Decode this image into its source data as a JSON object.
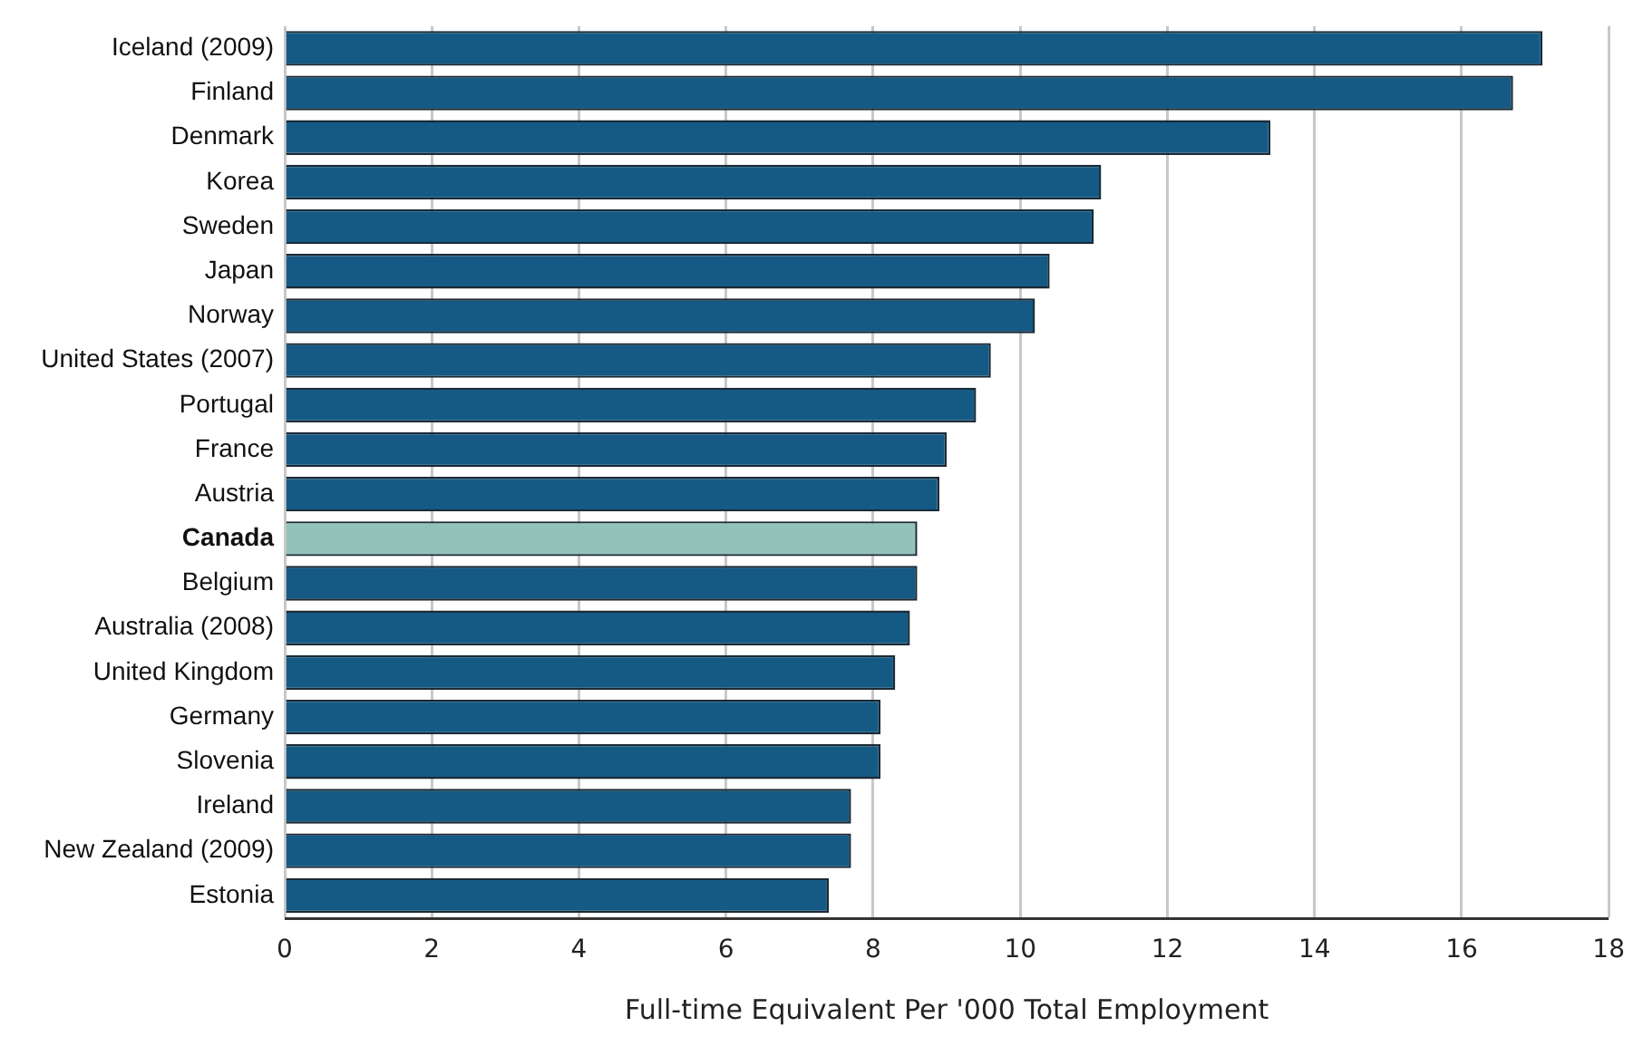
{
  "chart_data": {
    "type": "bar",
    "orientation": "horizontal",
    "xlabel": "Full-time Equivalent Per '000 Total Employment",
    "categories": [
      "Iceland (2009)",
      "Finland",
      "Denmark",
      "Korea",
      "Sweden",
      "Japan",
      "Norway",
      "United States (2007)",
      "Portugal",
      "France",
      "Austria",
      "Canada",
      "Belgium",
      "Australia (2008)",
      "United Kingdom",
      "Germany",
      "Slovenia",
      "Ireland",
      "New Zealand (2009)",
      "Estonia"
    ],
    "values": [
      17.1,
      16.7,
      13.4,
      11.1,
      11.0,
      10.4,
      10.2,
      9.6,
      9.4,
      9.0,
      8.9,
      8.6,
      8.6,
      8.5,
      8.3,
      8.1,
      8.1,
      7.7,
      7.7,
      7.4
    ],
    "colors": [
      "#145a85",
      "#145a85",
      "#145a85",
      "#145a85",
      "#145a85",
      "#145a85",
      "#145a85",
      "#145a85",
      "#145a85",
      "#145a85",
      "#145a85",
      "#93c2bb",
      "#145a85",
      "#145a85",
      "#145a85",
      "#145a85",
      "#145a85",
      "#145a85",
      "#145a85",
      "#145a85"
    ],
    "xlim": [
      0,
      18
    ],
    "xticks": [
      0,
      2,
      4,
      6,
      8,
      10,
      12,
      14,
      16,
      18
    ],
    "grid": "x"
  }
}
